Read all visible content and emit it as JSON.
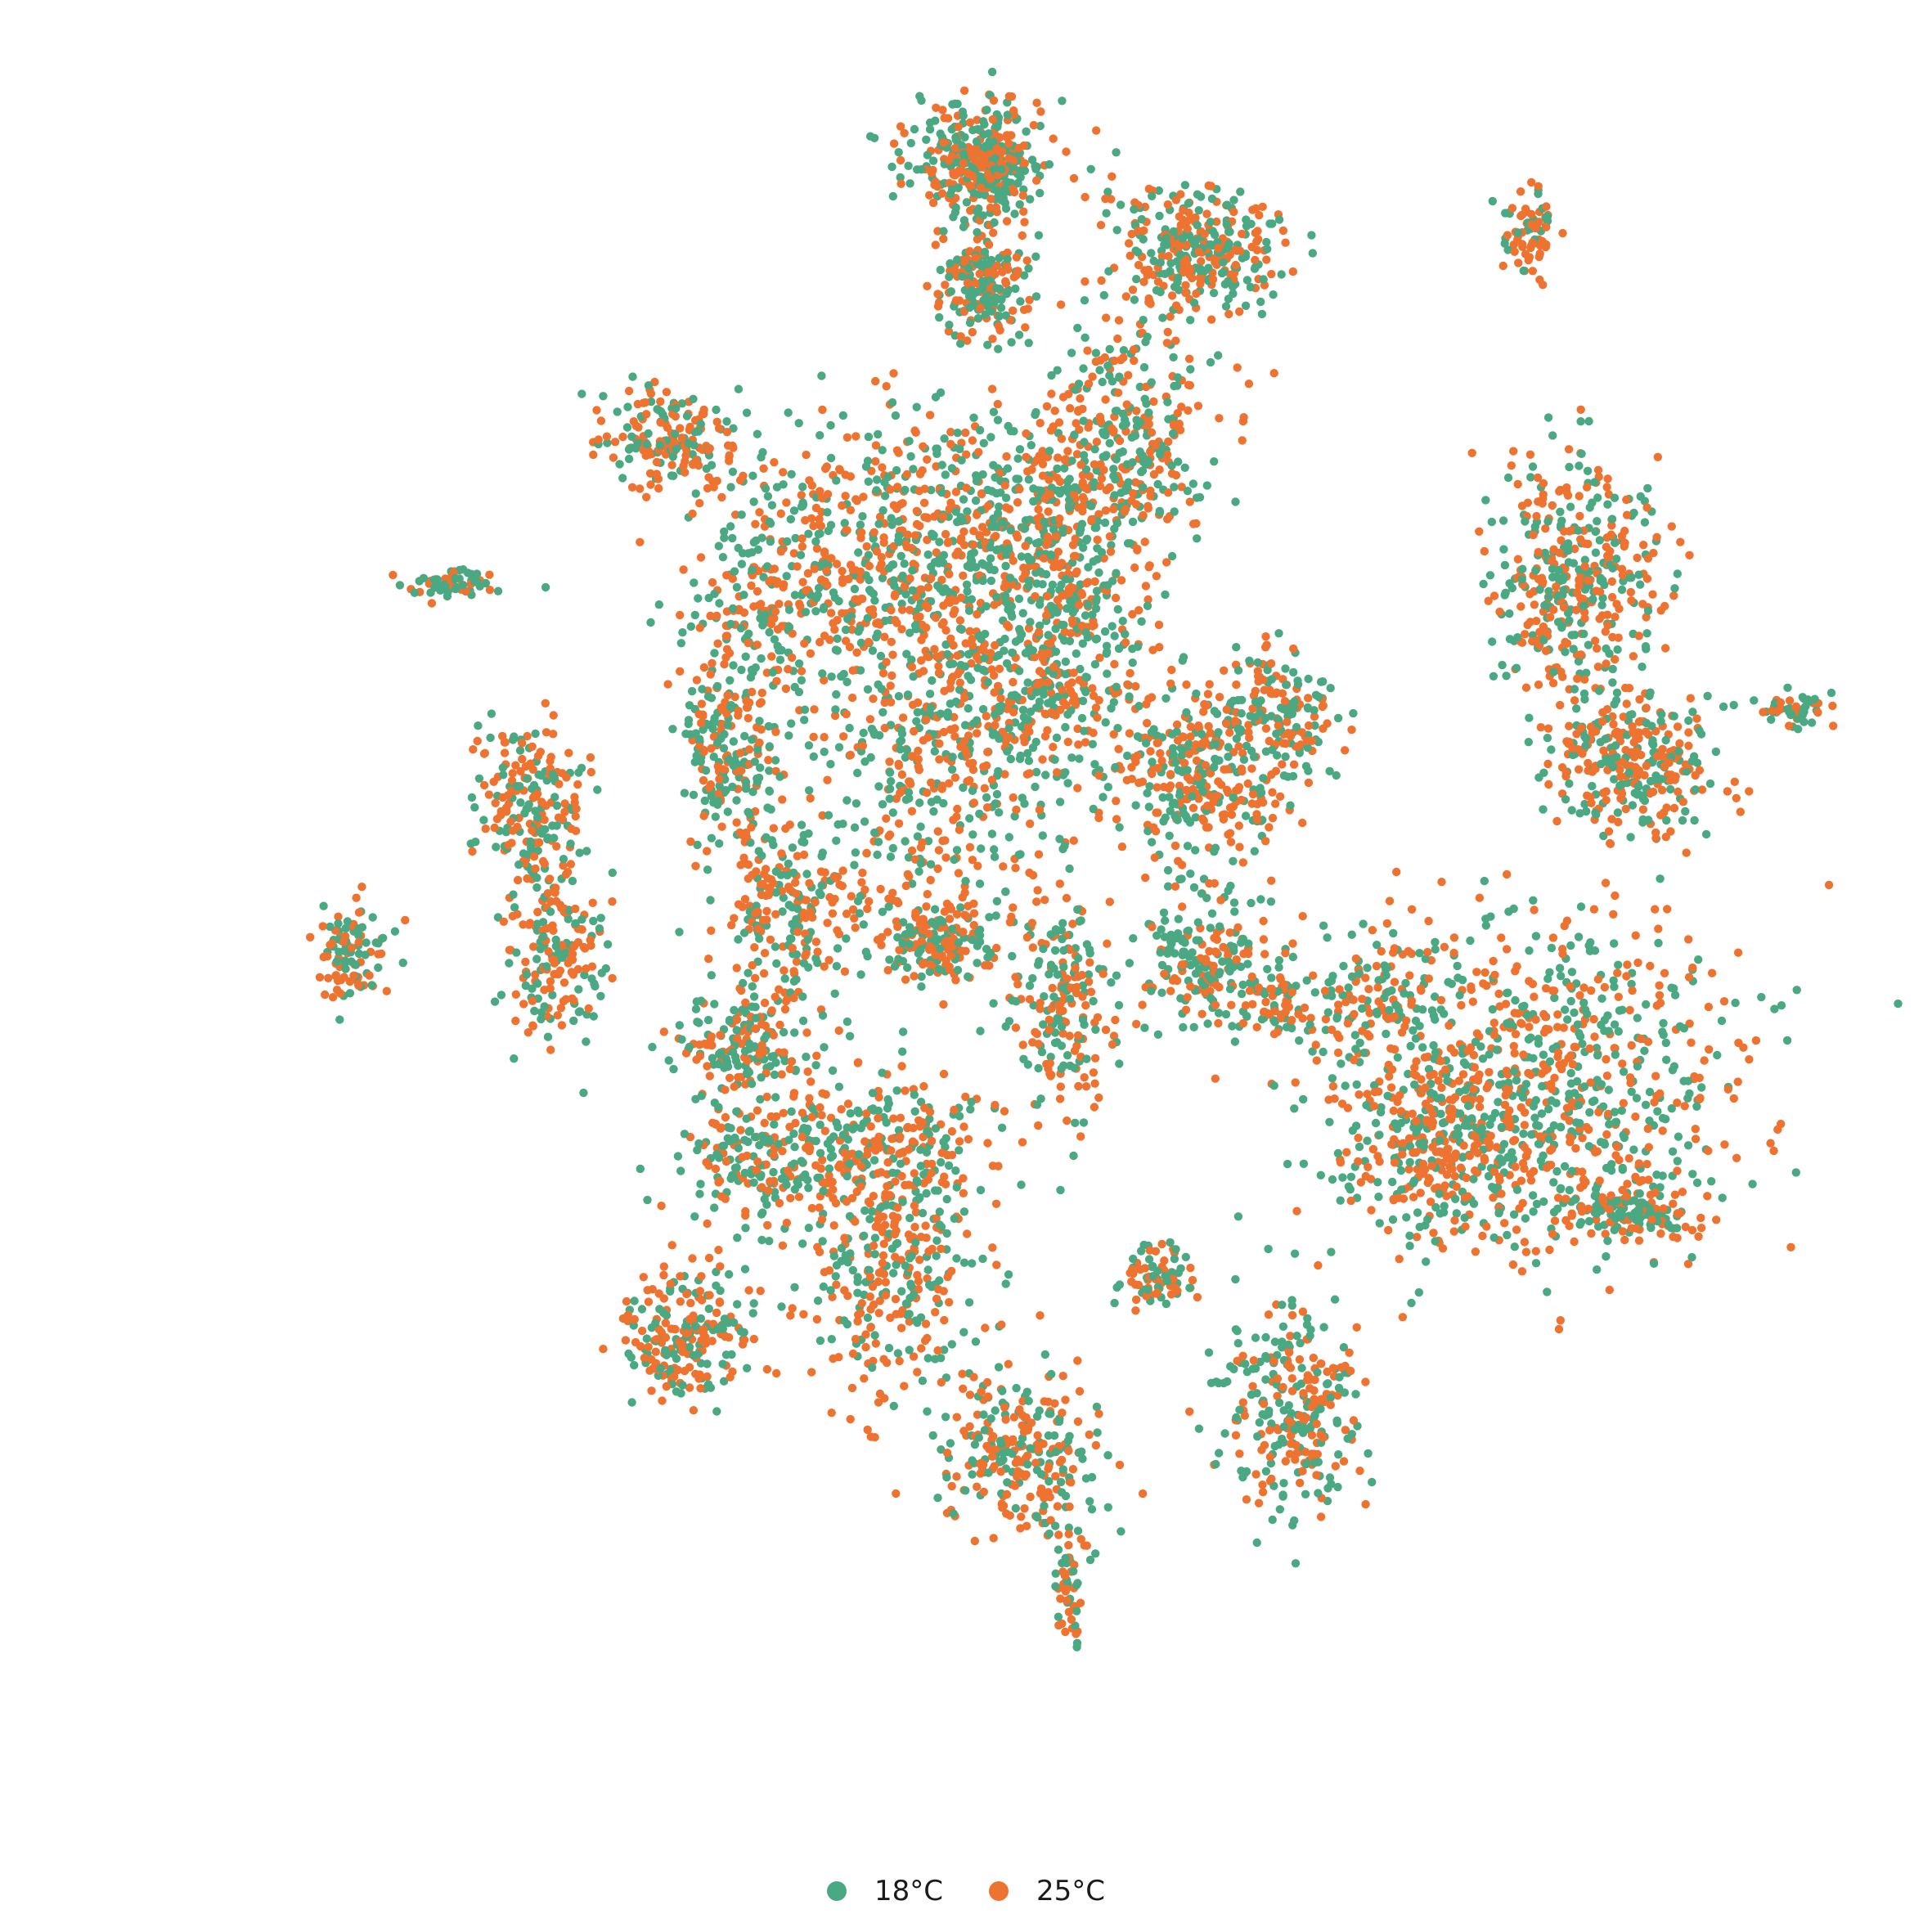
{
  "chart_data": {
    "type": "scatter",
    "title": "",
    "xlabel": "",
    "ylabel": "",
    "axes_visible": false,
    "grid": false,
    "legend_position": "bottom-center",
    "series": [
      {
        "name": "18°C",
        "color": "#4aa882"
      },
      {
        "name": "25°C",
        "color": "#ef7330"
      }
    ],
    "clusters": [
      {
        "cx": 0.02,
        "cy": 0.88,
        "sx": 0.04,
        "sy": 0.035,
        "n": 380,
        "share_25": 0.45
      },
      {
        "cx": 0.02,
        "cy": 0.74,
        "sx": 0.025,
        "sy": 0.03,
        "n": 200,
        "share_25": 0.5
      },
      {
        "cx": 0.27,
        "cy": 0.78,
        "sx": 0.05,
        "sy": 0.035,
        "n": 320,
        "share_25": 0.5
      },
      {
        "cx": 0.66,
        "cy": 0.8,
        "sx": 0.015,
        "sy": 0.025,
        "n": 70,
        "share_25": 0.55
      },
      {
        "cx": -0.35,
        "cy": 0.56,
        "sx": 0.04,
        "sy": 0.03,
        "n": 180,
        "share_25": 0.6
      },
      {
        "cx": -0.6,
        "cy": 0.39,
        "sx": 0.03,
        "sy": 0.008,
        "n": 60,
        "share_25": 0.4
      },
      {
        "cx": 0.19,
        "cy": 0.56,
        "sx": 0.05,
        "sy": 0.07,
        "n": 330,
        "share_25": 0.5
      },
      {
        "cx": -0.09,
        "cy": 0.42,
        "sx": 0.06,
        "sy": 0.08,
        "n": 360,
        "share_25": 0.55
      },
      {
        "cx": -0.23,
        "cy": 0.38,
        "sx": 0.05,
        "sy": 0.08,
        "n": 300,
        "share_25": 0.5
      },
      {
        "cx": -0.02,
        "cy": 0.2,
        "sx": 0.07,
        "sy": 0.1,
        "n": 450,
        "share_25": 0.5
      },
      {
        "cx": 0.07,
        "cy": 0.46,
        "sx": 0.06,
        "sy": 0.06,
        "n": 340,
        "share_25": 0.45
      },
      {
        "cx": 0.1,
        "cy": 0.31,
        "sx": 0.06,
        "sy": 0.08,
        "n": 400,
        "share_25": 0.45
      },
      {
        "cx": 0.28,
        "cy": 0.17,
        "sx": 0.05,
        "sy": 0.05,
        "n": 320,
        "share_25": 0.55
      },
      {
        "cx": 0.37,
        "cy": 0.24,
        "sx": 0.03,
        "sy": 0.04,
        "n": 140,
        "share_25": 0.5
      },
      {
        "cx": 0.71,
        "cy": 0.39,
        "sx": 0.05,
        "sy": 0.07,
        "n": 420,
        "share_25": 0.5
      },
      {
        "cx": 0.78,
        "cy": 0.18,
        "sx": 0.05,
        "sy": 0.04,
        "n": 300,
        "share_25": 0.6
      },
      {
        "cx": 0.97,
        "cy": 0.24,
        "sx": 0.02,
        "sy": 0.01,
        "n": 50,
        "share_25": 0.3
      },
      {
        "cx": -0.28,
        "cy": 0.19,
        "sx": 0.03,
        "sy": 0.05,
        "n": 180,
        "share_25": 0.4
      },
      {
        "cx": -0.51,
        "cy": 0.12,
        "sx": 0.03,
        "sy": 0.05,
        "n": 220,
        "share_25": 0.6
      },
      {
        "cx": -0.72,
        "cy": -0.05,
        "sx": 0.02,
        "sy": 0.03,
        "n": 100,
        "share_25": 0.4
      },
      {
        "cx": -0.48,
        "cy": -0.05,
        "sx": 0.03,
        "sy": 0.05,
        "n": 160,
        "share_25": 0.5
      },
      {
        "cx": -0.2,
        "cy": 0.01,
        "sx": 0.05,
        "sy": 0.06,
        "n": 260,
        "share_25": 0.5
      },
      {
        "cx": -0.03,
        "cy": -0.03,
        "sx": 0.03,
        "sy": 0.03,
        "n": 160,
        "share_25": 0.55
      },
      {
        "cx": -0.26,
        "cy": -0.15,
        "sx": 0.04,
        "sy": 0.03,
        "n": 160,
        "share_25": 0.5
      },
      {
        "cx": 0.11,
        "cy": -0.11,
        "sx": 0.03,
        "sy": 0.07,
        "n": 200,
        "share_25": 0.5
      },
      {
        "cx": 0.28,
        "cy": -0.05,
        "sx": 0.04,
        "sy": 0.04,
        "n": 220,
        "share_25": 0.4
      },
      {
        "cx": 0.36,
        "cy": -0.11,
        "sx": 0.02,
        "sy": 0.02,
        "n": 60,
        "share_25": 0.5
      },
      {
        "cx": 0.47,
        "cy": -0.1,
        "sx": 0.04,
        "sy": 0.04,
        "n": 120,
        "share_25": 0.5
      },
      {
        "cx": 0.68,
        "cy": -0.19,
        "sx": 0.12,
        "sy": 0.1,
        "n": 800,
        "share_25": 0.5
      },
      {
        "cx": 0.55,
        "cy": -0.27,
        "sx": 0.06,
        "sy": 0.06,
        "n": 300,
        "share_25": 0.5
      },
      {
        "cx": 0.78,
        "cy": -0.35,
        "sx": 0.04,
        "sy": 0.02,
        "n": 130,
        "share_25": 0.4
      },
      {
        "cx": -0.1,
        "cy": -0.27,
        "sx": 0.06,
        "sy": 0.04,
        "n": 250,
        "share_25": 0.5
      },
      {
        "cx": -0.24,
        "cy": -0.29,
        "sx": 0.05,
        "sy": 0.04,
        "n": 200,
        "share_25": 0.45
      },
      {
        "cx": -0.09,
        "cy": -0.42,
        "sx": 0.05,
        "sy": 0.07,
        "n": 280,
        "share_25": 0.55
      },
      {
        "cx": -0.32,
        "cy": -0.49,
        "sx": 0.04,
        "sy": 0.04,
        "n": 220,
        "share_25": 0.55
      },
      {
        "cx": 0.22,
        "cy": -0.42,
        "sx": 0.02,
        "sy": 0.02,
        "n": 80,
        "share_25": 0.5
      },
      {
        "cx": 0.38,
        "cy": -0.58,
        "sx": 0.04,
        "sy": 0.06,
        "n": 280,
        "share_25": 0.45
      },
      {
        "cx": 0.06,
        "cy": -0.63,
        "sx": 0.05,
        "sy": 0.05,
        "n": 260,
        "share_25": 0.55
      },
      {
        "cx": 0.12,
        "cy": -0.79,
        "sx": 0.01,
        "sy": 0.04,
        "n": 50,
        "share_25": 0.5
      }
    ]
  }
}
